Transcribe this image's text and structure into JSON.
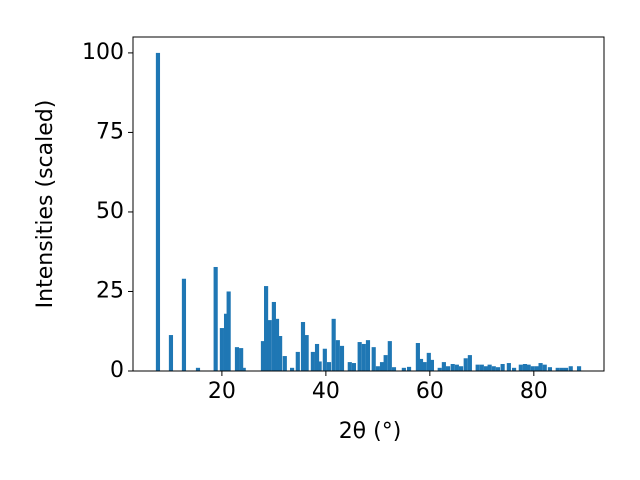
{
  "chart_data": {
    "type": "bar",
    "x_label": "2θ (°)",
    "y_label": "Intensities (scaled)",
    "color": "#1f77b4",
    "bar_width": 0.8,
    "x": [
      7.7,
      10.2,
      12.7,
      15.4,
      18.8,
      20.0,
      20.8,
      21.3,
      22.9,
      23.7,
      24.2,
      27.9,
      28.5,
      29.2,
      30.0,
      30.6,
      31.2,
      32.1,
      33.5,
      34.6,
      35.6,
      36.3,
      37.5,
      38.3,
      38.8,
      39.8,
      40.6,
      41.5,
      42.3,
      43.1,
      44.6,
      45.4,
      46.5,
      47.3,
      48.1,
      49.2,
      50.0,
      50.8,
      51.5,
      52.3,
      53.1,
      55.0,
      56.0,
      57.7,
      58.3,
      59.0,
      59.8,
      60.4,
      61.9,
      62.7,
      63.5,
      64.4,
      65.2,
      66.0,
      66.9,
      67.7,
      69.2,
      70.0,
      70.8,
      71.5,
      72.3,
      73.1,
      74.0,
      75.2,
      76.2,
      77.5,
      78.3,
      79.0,
      79.8,
      80.6,
      81.3,
      82.1,
      83.1,
      84.6,
      85.4,
      86.2,
      87.1,
      88.7
    ],
    "values": [
      100,
      11.3,
      29,
      1,
      32.7,
      13.5,
      18,
      25,
      7.5,
      7.2,
      1,
      9.4,
      26.7,
      16,
      21.7,
      16.4,
      11,
      4.7,
      1,
      6,
      15.4,
      11.3,
      6,
      8.5,
      3,
      7,
      2.8,
      16.4,
      9.7,
      7.9,
      2.8,
      2.5,
      9.1,
      8.5,
      9.7,
      7.5,
      1.5,
      2.8,
      5,
      9.4,
      1.2,
      1,
      1.3,
      8.8,
      3.8,
      2.8,
      5.7,
      3.5,
      1,
      2.8,
      1.5,
      2.2,
      2,
      1.5,
      4,
      5,
      2,
      2,
      1.5,
      2,
      1.5,
      1.2,
      2.2,
      2.5,
      1,
      2,
      2.2,
      2,
      1.5,
      1.5,
      2.5,
      2,
      1.2,
      1,
      1,
      1,
      1.5,
      1.5
    ],
    "xlim": [
      2.9,
      93.5
    ],
    "ylim": [
      0,
      105
    ],
    "xticks": [
      20,
      40,
      60,
      80
    ],
    "yticks": [
      0,
      25,
      50,
      75,
      100
    ]
  }
}
